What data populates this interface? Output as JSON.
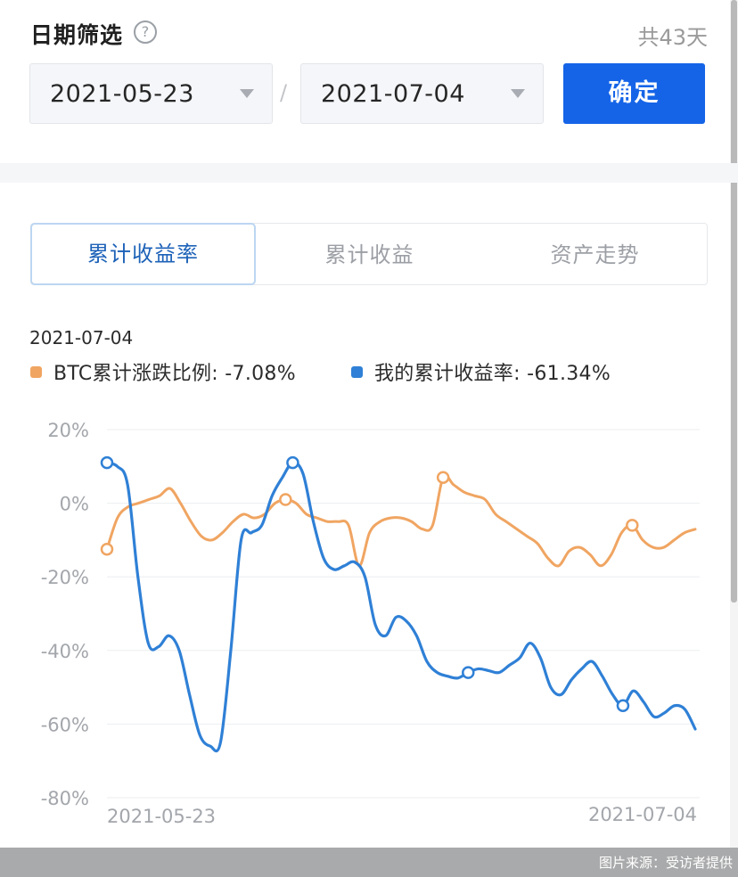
{
  "filter": {
    "title": "日期筛选",
    "help_icon": "question-circle-icon",
    "days_count": "共43天",
    "start_date": "2021-05-23",
    "end_date": "2021-07-04",
    "separator": "/",
    "confirm_label": "确定"
  },
  "tabs": [
    {
      "label": "累计收益率",
      "active": true
    },
    {
      "label": "累计收益",
      "active": false
    },
    {
      "label": "资产走势",
      "active": false
    }
  ],
  "legend": {
    "date": "2021-07-04",
    "btc": {
      "label": "BTC累计涨跌比例: -7.08%",
      "color": "#f0a562"
    },
    "mine": {
      "label": "我的累计收益率: -61.34%",
      "color": "#2f80d6"
    }
  },
  "footer": {
    "caption": "图片来源：受访者提供"
  },
  "chart_data": {
    "type": "line",
    "x_start_label": "2021-05-23",
    "x_end_label": "2021-07-04",
    "y_ticks": [
      "20%",
      "0%",
      "-20%",
      "-40%",
      "-60%",
      "-80%"
    ],
    "ylim": [
      -80,
      20
    ],
    "grid": true,
    "series": [
      {
        "name": "BTC累计涨跌比例",
        "color": "#f0a562",
        "values": [
          -12.5,
          -4,
          -1,
          0,
          1,
          2,
          4,
          0,
          -5,
          -9,
          -10,
          -8,
          -5,
          -3,
          -4,
          -3,
          0,
          1,
          0,
          -3,
          -4,
          -5,
          -5,
          -6,
          -17,
          -8,
          -5,
          -4,
          -4,
          -5,
          -7,
          -6,
          7,
          5,
          3,
          2,
          1,
          -3,
          -5,
          -7,
          -9,
          -11,
          -15,
          -17,
          -13,
          -12,
          -14,
          -17,
          -14,
          -8,
          -6,
          -10,
          -12,
          -12,
          -10,
          -8,
          -7.08
        ],
        "markers": [
          0,
          17,
          32,
          50
        ]
      },
      {
        "name": "我的累计收益率",
        "color": "#2f80d6",
        "values": [
          11,
          10,
          5,
          -20,
          -38,
          -39,
          -36,
          -40,
          -52,
          -63,
          -66,
          -65,
          -40,
          -10,
          -8,
          -6,
          2,
          7,
          11,
          8,
          -5,
          -15,
          -18,
          -17,
          -16,
          -20,
          -33,
          -36,
          -31,
          -32,
          -36,
          -43,
          -46,
          -47,
          -47.5,
          -46,
          -45,
          -45.5,
          -46,
          -44,
          -42,
          -38,
          -42,
          -50,
          -52,
          -48,
          -45,
          -43,
          -47,
          -52,
          -55,
          -51,
          -54,
          -58,
          -57,
          -55,
          -56,
          -61.34
        ],
        "markers": [
          0,
          18,
          35,
          50
        ]
      }
    ]
  }
}
